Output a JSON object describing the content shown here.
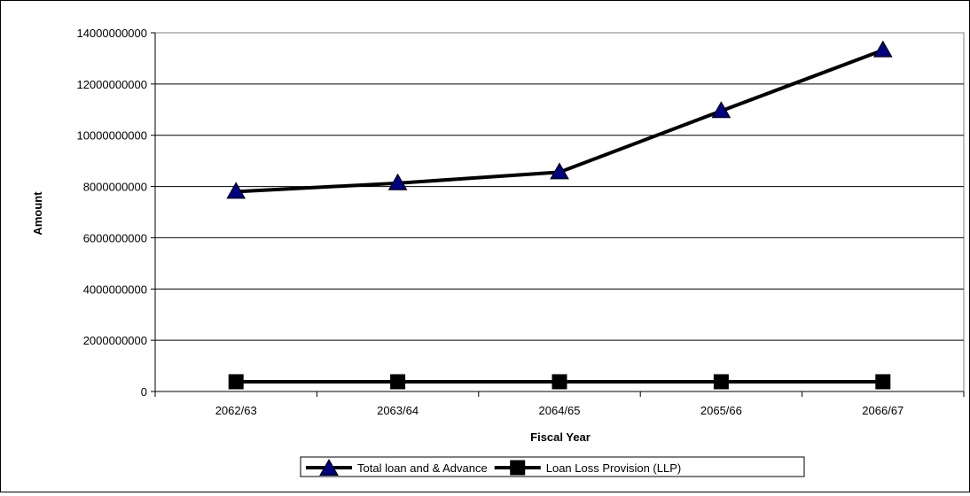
{
  "chart_data": {
    "type": "line",
    "title": "",
    "xlabel": "Fiscal Year",
    "ylabel": "Amount",
    "categories": [
      "2062/63",
      "2063/64",
      "2064/65",
      "2065/66",
      "2066/67"
    ],
    "ylim": [
      0,
      14000000000
    ],
    "yticks": [
      0,
      2000000000,
      4000000000,
      6000000000,
      8000000000,
      10000000000,
      12000000000,
      14000000000
    ],
    "ytick_labels": [
      "0",
      "2000000000",
      "4000000000",
      "6000000000",
      "8000000000",
      "10000000000",
      "12000000000",
      "14000000000"
    ],
    "grid": true,
    "legend_position": "bottom",
    "series": [
      {
        "name": "Total loan and & Advance",
        "values": [
          7800000000,
          8130000000,
          8560000000,
          10950000000,
          13320000000
        ],
        "marker": "triangle",
        "line_color": "#000000",
        "marker_color": "#000080"
      },
      {
        "name": "Loan Loss Provision (LLP)",
        "values": [
          380000000,
          380000000,
          380000000,
          380000000,
          380000000
        ],
        "marker": "square",
        "line_color": "#000000",
        "marker_color": "#000000"
      }
    ]
  }
}
